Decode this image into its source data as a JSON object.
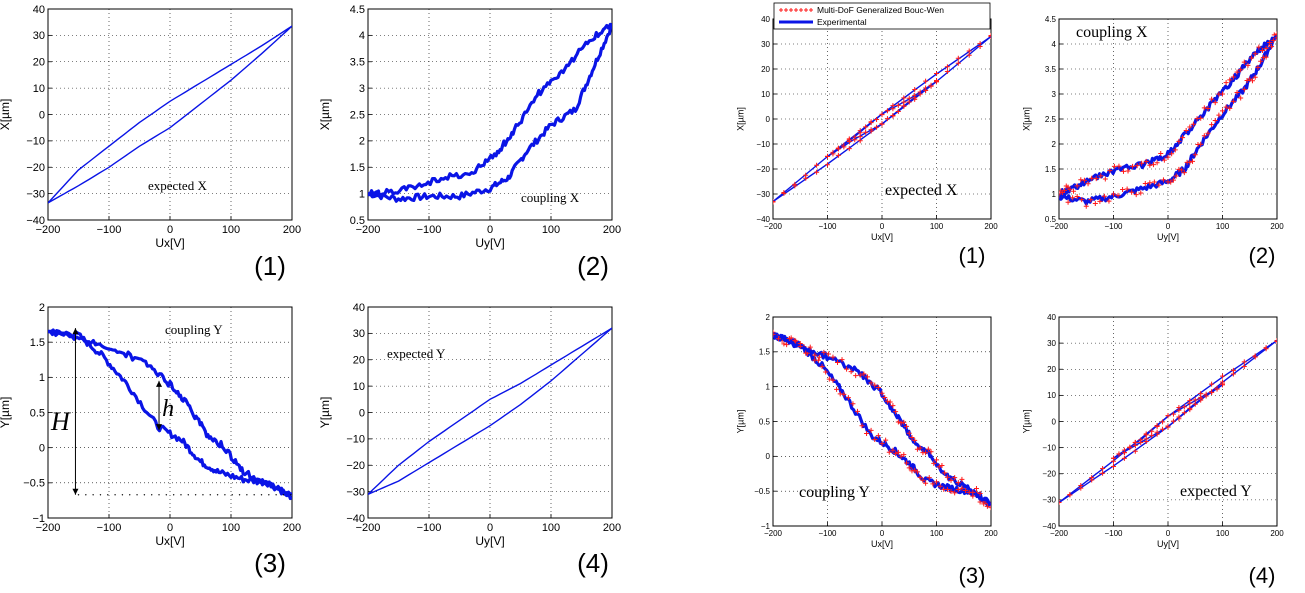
{
  "colors": {
    "blue": "#0a14e6",
    "red": "#ff1a1a",
    "grid": "#000000"
  },
  "legend": {
    "model": "Multi-DoF Generalized Bouc-Wen",
    "experimental": "Experimental"
  },
  "chart_data": [
    {
      "id": "L1",
      "type": "line",
      "group": "left",
      "subplot": "(1)",
      "annotation": "expected X",
      "xlabel": "Ux[V]",
      "ylabel": "X[µm]",
      "xlim": [
        -200,
        200
      ],
      "ylim": [
        -40,
        40
      ],
      "xticks": [
        -200,
        -100,
        0,
        100,
        200
      ],
      "yticks": [
        -40,
        -30,
        -20,
        -10,
        0,
        10,
        20,
        30,
        40
      ],
      "grid": true,
      "series": [
        {
          "x": [
            -200,
            -150,
            -100,
            -50,
            0,
            50,
            100,
            150,
            200
          ],
          "y": [
            -33.5,
            -21,
            -12,
            -3,
            5,
            12,
            19,
            26,
            33.5
          ]
        },
        {
          "x": [
            200,
            150,
            100,
            50,
            0,
            -50,
            -100,
            -150,
            -200
          ],
          "y": [
            33.5,
            23,
            13,
            4,
            -5,
            -12,
            -20,
            -27,
            -33.5
          ]
        }
      ]
    },
    {
      "id": "L2",
      "type": "line",
      "group": "left",
      "subplot": "(2)",
      "annotation": "coupling X",
      "xlabel": "Uy[V]",
      "ylabel": "X[µm]",
      "xlim": [
        -200,
        200
      ],
      "ylim": [
        0.5,
        4.5
      ],
      "xticks": [
        -200,
        -100,
        0,
        100,
        200
      ],
      "yticks": [
        0.5,
        1,
        1.5,
        2,
        2.5,
        3,
        3.5,
        4,
        4.5
      ],
      "grid": true,
      "series": [
        {
          "x": [
            -200,
            -150,
            -100,
            -50,
            0,
            30,
            60,
            100,
            140,
            170,
            200
          ],
          "y": [
            1.0,
            0.9,
            0.95,
            0.95,
            1.1,
            1.3,
            1.8,
            2.3,
            2.6,
            3.4,
            4.2
          ]
        },
        {
          "x": [
            200,
            160,
            120,
            80,
            40,
            10,
            -30,
            -80,
            -130,
            -180,
            -200
          ],
          "y": [
            4.2,
            3.9,
            3.3,
            2.9,
            2.2,
            1.75,
            1.4,
            1.3,
            1.1,
            1.0,
            1.0
          ]
        }
      ]
    },
    {
      "id": "L3",
      "type": "line",
      "group": "left",
      "subplot": "(3)",
      "annotation": "coupling Y",
      "annotation_H": "H",
      "annotation_h": "h",
      "xlabel": "Ux[V]",
      "ylabel": "Y[µm]",
      "xlim": [
        -200,
        200
      ],
      "ylim": [
        -1,
        2
      ],
      "xticks": [
        -200,
        -100,
        0,
        100,
        200
      ],
      "yticks": [
        -1,
        -0.5,
        0,
        0.5,
        1,
        1.5,
        2
      ],
      "grid": true,
      "series": [
        {
          "x": [
            -200,
            -150,
            -110,
            -70,
            -20,
            20,
            50,
            80,
            120,
            160,
            200
          ],
          "y": [
            1.65,
            1.6,
            1.3,
            0.9,
            0.3,
            0.1,
            -0.2,
            -0.35,
            -0.45,
            -0.5,
            -0.7
          ]
        },
        {
          "x": [
            200,
            160,
            120,
            90,
            60,
            30,
            0,
            -40,
            -90,
            -140,
            -200
          ],
          "y": [
            -0.7,
            -0.5,
            -0.35,
            0.0,
            0.2,
            0.6,
            0.9,
            1.2,
            1.4,
            1.55,
            1.65
          ]
        }
      ]
    },
    {
      "id": "L4",
      "type": "line",
      "group": "left",
      "subplot": "(4)",
      "annotation": "expected Y",
      "xlabel": "Uy[V]",
      "ylabel": "Y[µm]",
      "xlim": [
        -200,
        200
      ],
      "ylim": [
        -40,
        40
      ],
      "xticks": [
        -200,
        -100,
        0,
        100,
        200
      ],
      "yticks": [
        -40,
        -30,
        -20,
        -10,
        0,
        10,
        20,
        30,
        40
      ],
      "grid": true,
      "series": [
        {
          "x": [
            -200,
            -150,
            -100,
            -50,
            0,
            50,
            100,
            150,
            200
          ],
          "y": [
            -31,
            -20,
            -11,
            -3,
            5,
            11,
            18,
            25,
            32
          ]
        },
        {
          "x": [
            200,
            150,
            100,
            50,
            0,
            -50,
            -100,
            -150,
            -200
          ],
          "y": [
            32,
            22,
            12,
            3,
            -5,
            -12,
            -19,
            -26,
            -31
          ]
        }
      ]
    },
    {
      "id": "R1",
      "type": "line",
      "group": "right",
      "subplot": "(1)",
      "annotation": "expected   X",
      "xlabel": "Ux[V]",
      "ylabel": "X[µm]",
      "xlim": [
        -200,
        200
      ],
      "ylim": [
        -40,
        40
      ],
      "xticks": [
        -200,
        -100,
        0,
        100,
        200
      ],
      "yticks": [
        -40,
        -30,
        -20,
        -10,
        0,
        10,
        20,
        30,
        40
      ],
      "grid": true,
      "legend": true,
      "series": [
        {
          "x": [
            -200,
            -100,
            0,
            100,
            200
          ],
          "y": [
            -33,
            -15,
            2,
            18,
            33
          ]
        },
        {
          "x": [
            200,
            100,
            0,
            -100,
            -200
          ],
          "y": [
            33,
            15,
            -2,
            -18,
            -33
          ]
        },
        {
          "x": [
            -100,
            -50,
            0,
            50,
            100
          ],
          "y": [
            -15,
            -7,
            2,
            8,
            15
          ]
        },
        {
          "x": [
            100,
            50,
            0,
            -50,
            -100
          ],
          "y": [
            15,
            7,
            -2,
            -8,
            -15
          ]
        }
      ]
    },
    {
      "id": "R2",
      "type": "line",
      "group": "right",
      "subplot": "(2)",
      "annotation": "coupling X",
      "xlabel": "Uy[V]",
      "ylabel": "X[µm]",
      "xlim": [
        -200,
        200
      ],
      "ylim": [
        0.5,
        4.5
      ],
      "xticks": [
        -200,
        -100,
        0,
        100,
        200
      ],
      "yticks": [
        0.5,
        1,
        1.5,
        2,
        2.5,
        3,
        3.5,
        4,
        4.5
      ],
      "grid": true,
      "series": [
        {
          "x": [
            -200,
            -150,
            -100,
            -50,
            0,
            30,
            60,
            100,
            140,
            170,
            200
          ],
          "y": [
            0.95,
            0.85,
            0.95,
            1.1,
            1.25,
            1.5,
            2.0,
            2.6,
            3.1,
            3.6,
            4.2
          ]
        },
        {
          "x": [
            200,
            160,
            120,
            80,
            40,
            0,
            -40,
            -90,
            -140,
            -180,
            -200
          ],
          "y": [
            4.2,
            3.8,
            3.3,
            2.8,
            2.3,
            1.8,
            1.6,
            1.5,
            1.3,
            1.1,
            1.0
          ]
        }
      ]
    },
    {
      "id": "R3",
      "type": "line",
      "group": "right",
      "subplot": "(3)",
      "annotation": "coupling Y",
      "xlabel": "Ux[V]",
      "ylabel": "Y[µm]",
      "xlim": [
        -200,
        200
      ],
      "ylim": [
        -1,
        2
      ],
      "xticks": [
        -200,
        -100,
        0,
        100,
        200
      ],
      "yticks": [
        -1,
        -0.5,
        0,
        0.5,
        1,
        1.5,
        2
      ],
      "grid": true,
      "series": [
        {
          "x": [
            -200,
            -150,
            -110,
            -70,
            -20,
            20,
            50,
            80,
            120,
            160,
            200
          ],
          "y": [
            1.75,
            1.6,
            1.3,
            0.9,
            0.3,
            0.1,
            -0.1,
            -0.35,
            -0.45,
            -0.5,
            -0.7
          ]
        },
        {
          "x": [
            200,
            160,
            120,
            90,
            60,
            30,
            0,
            -40,
            -90,
            -140,
            -200
          ],
          "y": [
            -0.7,
            -0.45,
            -0.3,
            0.0,
            0.2,
            0.55,
            0.9,
            1.2,
            1.4,
            1.55,
            1.75
          ]
        }
      ]
    },
    {
      "id": "R4",
      "type": "line",
      "group": "right",
      "subplot": "(4)",
      "annotation": "expected Y",
      "xlabel": "Uy[V]",
      "ylabel": "Y[µm]",
      "xlim": [
        -200,
        200
      ],
      "ylim": [
        -40,
        40
      ],
      "xticks": [
        -200,
        -100,
        0,
        100,
        200
      ],
      "yticks": [
        -40,
        -30,
        -20,
        -10,
        0,
        10,
        20,
        30,
        40
      ],
      "grid": true,
      "series": [
        {
          "x": [
            -200,
            -100,
            0,
            100,
            200
          ],
          "y": [
            -31,
            -15,
            2,
            17,
            31
          ]
        },
        {
          "x": [
            200,
            100,
            0,
            -100,
            -200
          ],
          "y": [
            31,
            15,
            -2,
            -17,
            -31
          ]
        },
        {
          "x": [
            -100,
            -50,
            0,
            50,
            100
          ],
          "y": [
            -14,
            -7,
            2,
            8,
            14
          ]
        },
        {
          "x": [
            100,
            50,
            0,
            -50,
            -100
          ],
          "y": [
            14,
            7,
            -2,
            -8,
            -14
          ]
        }
      ]
    }
  ]
}
